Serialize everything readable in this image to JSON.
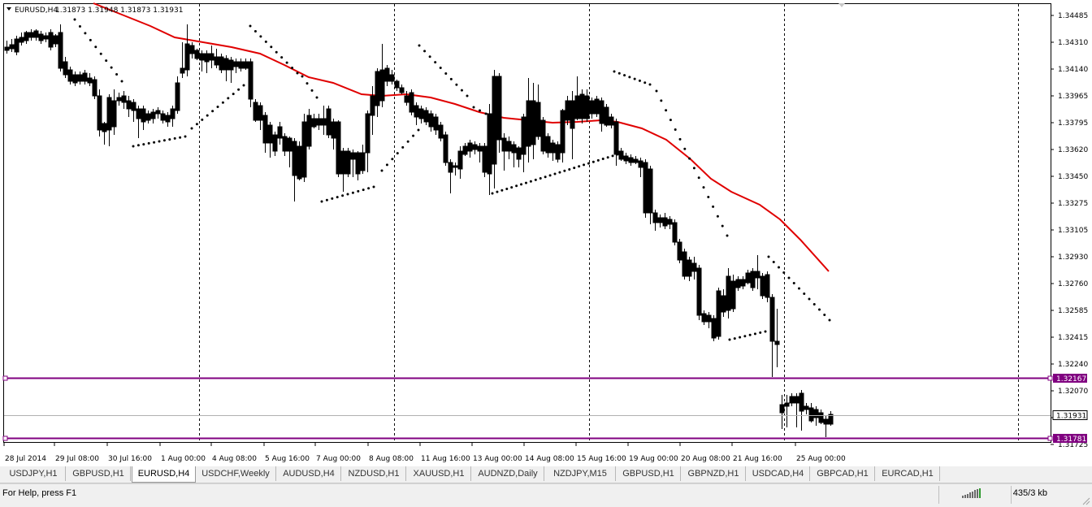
{
  "chart": {
    "symbol_label": "EURUSD,H4",
    "ohlc_label": "1.31873 1.31948 1.31873 1.31931",
    "price_ticks": [
      "1.34485",
      "1.34310",
      "1.34140",
      "1.33965",
      "1.33795",
      "1.33620",
      "1.33450",
      "1.33275",
      "1.33105",
      "1.32930",
      "1.32760",
      "1.32585",
      "1.32415",
      "1.32240",
      "1.32070",
      "1.31895",
      "1.31725"
    ],
    "time_labels": [
      "28 Jul 2014",
      "29 Jul 08:00",
      "30 Jul 16:00",
      "1 Aug 00:00",
      "4 Aug 08:00",
      "5 Aug 16:00",
      "7 Aug 00:00",
      "8 Aug 08:00",
      "11 Aug 16:00",
      "13 Aug 00:00",
      "14 Aug 08:00",
      "15 Aug 16:00",
      "19 Aug 00:00",
      "20 Aug 08:00",
      "21 Aug 16:00",
      "25 Aug 00:00"
    ],
    "hline_upper": "1.32167",
    "hline_lower": "1.31781",
    "current_price": "1.31931",
    "colors": {
      "ma": "#e00000",
      "hline": "#800080",
      "candle": "#000000",
      "grid": "#000000"
    },
    "indicators": [
      "moving-average",
      "parabolic-sar"
    ]
  },
  "tabs": [
    {
      "label": "USDJPY,H1"
    },
    {
      "label": "GBPUSD,H1"
    },
    {
      "label": "EURUSD,H4",
      "active": true
    },
    {
      "label": "USDCHF,Weekly"
    },
    {
      "label": "AUDUSD,H4"
    },
    {
      "label": "NZDUSD,H1"
    },
    {
      "label": "XAUUSD,H1"
    },
    {
      "label": "AUDNZD,Daily"
    },
    {
      "label": "NZDJPY,M15"
    },
    {
      "label": "GBPUSD,H1"
    },
    {
      "label": "GBPNZD,H1"
    },
    {
      "label": "USDCAD,H4"
    },
    {
      "label": "GBPCAD,H1"
    },
    {
      "label": "EURCAD,H1"
    }
  ],
  "status": {
    "help_text": "For Help, press F1",
    "traffic": "435/3 kb"
  }
}
